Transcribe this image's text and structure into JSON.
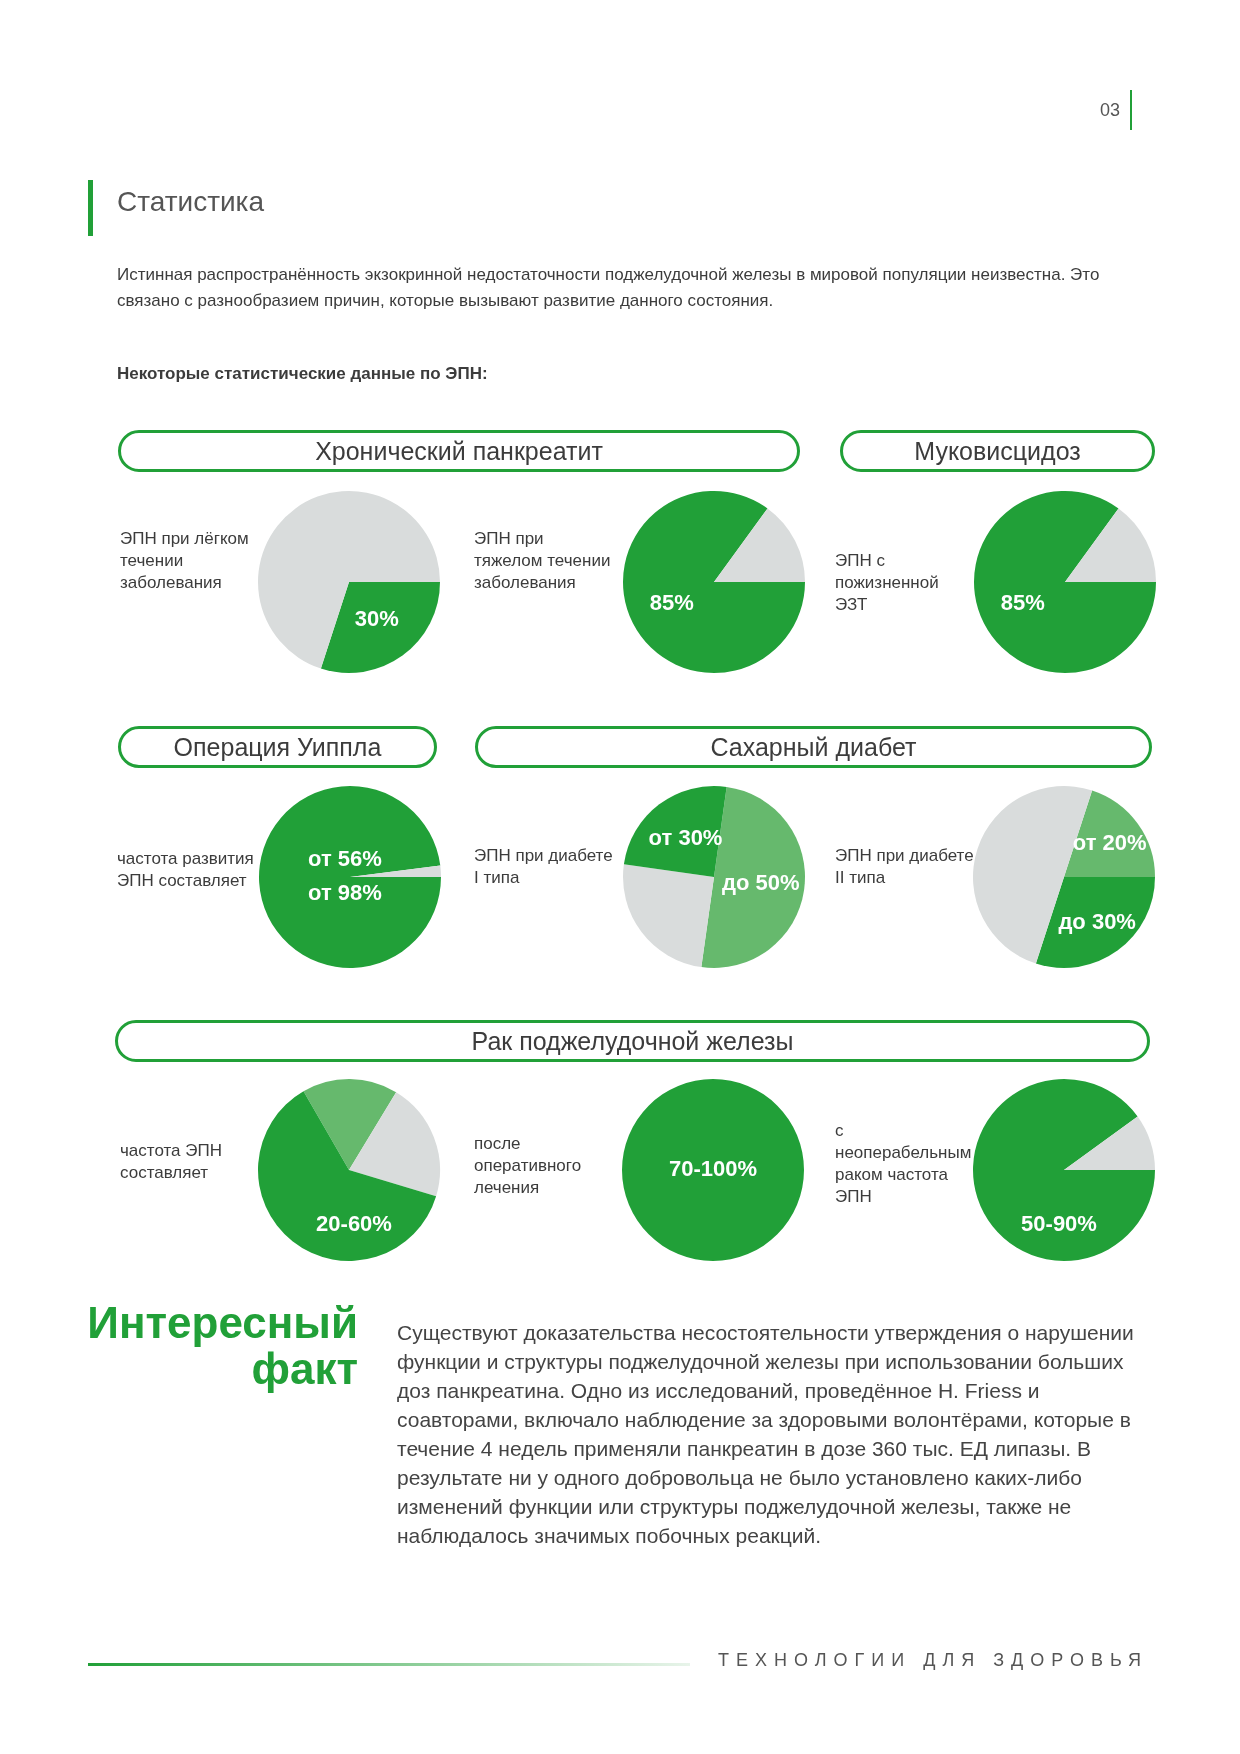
{
  "chart_data": [
    {
      "type": "other",
      "title": "Статистика",
      "annotations": [
        "Истинная распространённость экзокринной недостаточности поджелудочной железы в мировой популяции неизвестна. Это связано с разнообразием причин, которые вызывают развитие данного состояния.",
        "Некоторые статистические данные по ЭПН:",
        "03"
      ]
    },
    {
      "type": "other",
      "title": "Хронический панкреатит"
    },
    {
      "type": "other",
      "title": "Муковисцидоз"
    },
    {
      "type": "pie",
      "title": "ЭПН при лёгком течении заболевания",
      "categories": [
        null,
        null
      ],
      "values": [
        30,
        70
      ],
      "colors": [
        "#21a038",
        "#d9dcdc"
      ],
      "value_labels": [
        "30%",
        null
      ]
    },
    {
      "type": "pie",
      "title": "ЭПН при тяжелом течении заболевания",
      "categories": [
        null,
        null
      ],
      "values": [
        85,
        15
      ],
      "colors": [
        "#21a038",
        "#d9dcdc"
      ],
      "value_labels": [
        "85%",
        null
      ]
    },
    {
      "type": "pie",
      "title": "ЭПН с пожизненной ЭЗТ",
      "categories": [
        null,
        null
      ],
      "values": [
        85,
        15
      ],
      "colors": [
        "#21a038",
        "#d9dcdc"
      ],
      "value_labels": [
        "85%",
        null
      ]
    },
    {
      "type": "other",
      "title": "Операция Уиппла"
    },
    {
      "type": "other",
      "title": "Сахарный диабет"
    },
    {
      "type": "pie",
      "title": "частота развития ЭПН составляет",
      "categories": [
        null,
        null
      ],
      "values": [
        98,
        2
      ],
      "colors": [
        "#21a038",
        "#d9dcdc"
      ],
      "annotations": [
        "от 56%",
        "от 98%"
      ]
    },
    {
      "type": "pie",
      "title": "ЭПН при диабете I типа",
      "categories": [
        null,
        null,
        null
      ],
      "values": [
        50,
        25,
        25
      ],
      "colors": [
        "#66b96d",
        "#d9dcdc",
        "#21a038"
      ],
      "value_labels": [
        "до 50%",
        null,
        "от 30%"
      ]
    },
    {
      "type": "pie",
      "title": "ЭПН при диабете II типа",
      "categories": [
        null,
        null,
        null
      ],
      "values": [
        20,
        30,
        50
      ],
      "colors": [
        "#66b96d",
        "#21a038",
        "#d9dcdc"
      ],
      "value_labels": [
        "от 20%",
        "до 30%",
        null
      ]
    },
    {
      "type": "other",
      "title": "Рак поджелудочной железы"
    },
    {
      "type": "pie",
      "title": "частота ЭПН составляет",
      "categories": [
        null,
        null,
        null
      ],
      "values": [
        17,
        21,
        62
      ],
      "colors": [
        "#66b96d",
        "#d9dcdc",
        "#21a038"
      ],
      "annotations": [
        "20-60%"
      ]
    },
    {
      "type": "pie",
      "title": "после оперативного лечения",
      "categories": [
        null
      ],
      "values": [
        100
      ],
      "colors": [
        "#21a038"
      ],
      "annotations": [
        "70-100%"
      ]
    },
    {
      "type": "pie",
      "title": "с неоперабельным раком частота ЭПН",
      "categories": [
        null,
        null
      ],
      "values": [
        90,
        10
      ],
      "colors": [
        "#21a038",
        "#d9dcdc"
      ],
      "annotations": [
        "50-90%"
      ]
    },
    {
      "type": "other",
      "title": "Интересный факт",
      "annotations": [
        "Существуют доказательства несостоятельности утверждения о нарушении функции и структуры поджелудочной железы при использовании больших доз панкреатина. Одно из исследований, проведённое H. Friess и соавторами, включало наблюдение за здоровыми волонтёрами, которые в течение 4 недель применяли панкреатин в дозе 360 тыс. ЕД липазы. В результате ни у одного добровольца не было установлено каких-либо изменений функции или структуры поджелудочной железы, также не наблюдалось значимых побочных реакций.",
        "ТЕХНОЛОГИИ ДЛЯ ЗДОРОВЬЯ"
      ]
    }
  ]
}
